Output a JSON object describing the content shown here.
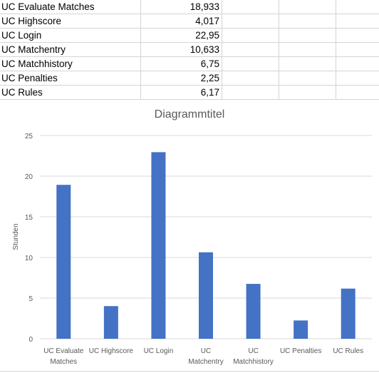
{
  "table": {
    "rows": [
      {
        "label": "UC Evaluate Matches",
        "value": "18,933"
      },
      {
        "label": "UC Highscore",
        "value": "4,017"
      },
      {
        "label": "UC Login",
        "value": "22,95"
      },
      {
        "label": "UC Matchentry",
        "value": "10,633"
      },
      {
        "label": "UC Matchhistory",
        "value": "6,75"
      },
      {
        "label": "UC Penalties",
        "value": "2,25"
      },
      {
        "label": "UC Rules",
        "value": "6,17"
      }
    ]
  },
  "chart_data": {
    "type": "bar",
    "title": "Diagrammtitel",
    "ylabel": "Stunden",
    "xlabel": "",
    "categories": [
      "UC Evaluate Matches",
      "UC Highscore",
      "UC Login",
      "UC Matchentry",
      "UC Matchhistory",
      "UC Penalties",
      "UC Rules"
    ],
    "category_lines": [
      [
        "UC Evaluate",
        "Matches"
      ],
      [
        "UC Highscore"
      ],
      [
        "UC Login"
      ],
      [
        "UC",
        "Matchentry"
      ],
      [
        "UC",
        "Matchhistory"
      ],
      [
        "UC Penalties"
      ],
      [
        "UC Rules"
      ]
    ],
    "values": [
      18.933,
      4.017,
      22.95,
      10.633,
      6.75,
      2.25,
      6.17
    ],
    "ylim": [
      0,
      25
    ],
    "yticks": [
      "0",
      "5",
      "10",
      "15",
      "20",
      "25"
    ],
    "grid": true,
    "bar_color": "#4472C4",
    "grid_color": "#d9d9d9"
  }
}
